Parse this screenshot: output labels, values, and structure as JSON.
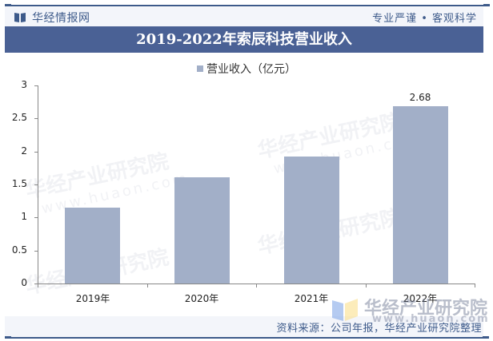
{
  "header": {
    "brand_name": "华经情报网",
    "slogan": "专业严谨 • 客观科学",
    "logo_icon": "book-icon"
  },
  "chart_title": "2019-2022年索辰科技营业收入",
  "legend": {
    "label": "营业收入（亿元）",
    "color": "#a2afc8"
  },
  "y_axis": {
    "ticks": [
      "0",
      "0.5",
      "1",
      "1.5",
      "2",
      "2.5",
      "3"
    ]
  },
  "bars": [
    {
      "label": "2019年",
      "value": 1.15
    },
    {
      "label": "2020年",
      "value": 1.61
    },
    {
      "label": "2021年",
      "value": 1.92
    },
    {
      "label": "2022年",
      "value": 2.68,
      "data_label": "2.68"
    }
  ],
  "footer": {
    "source": "资料来源：公司年报，华经产业研究院整理"
  },
  "watermark": {
    "name": "华经产业研究院",
    "url": "www.huaon.com"
  },
  "colors": {
    "brand": "#3d5a8a",
    "title_bar": "#4a6195",
    "bar": "#a2afc8"
  },
  "chart_data": {
    "type": "bar",
    "title": "2019-2022年索辰科技营业收入",
    "categories": [
      "2019年",
      "2020年",
      "2021年",
      "2022年"
    ],
    "series": [
      {
        "name": "营业收入（亿元）",
        "values": [
          1.15,
          1.61,
          1.92,
          2.68
        ]
      }
    ],
    "xlabel": "",
    "ylabel": "",
    "ylim": [
      0,
      3
    ],
    "yticks": [
      0,
      0.5,
      1,
      1.5,
      2,
      2.5,
      3
    ],
    "data_labels": {
      "2022年": "2.68"
    },
    "grid": false,
    "legend_position": "top",
    "source": "资料来源：公司年报，华经产业研究院整理"
  }
}
